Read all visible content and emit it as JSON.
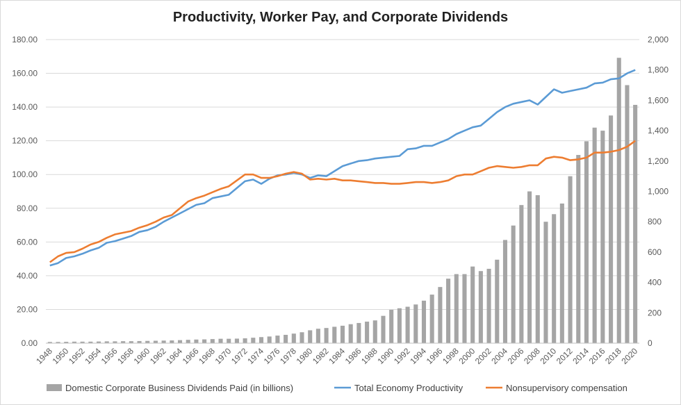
{
  "chart_data": {
    "type": "bar",
    "title": "Productivity, Worker Pay, and Corporate Dividends",
    "xlabel": "",
    "ylabel": "",
    "y2label": "",
    "ylim": [
      0,
      180
    ],
    "y2lim": [
      0,
      2000
    ],
    "y_ticks": [
      "0.00",
      "20.00",
      "40.00",
      "60.00",
      "80.00",
      "100.00",
      "120.00",
      "140.00",
      "160.00",
      "180.00"
    ],
    "y2_ticks": [
      "0",
      "200",
      "400",
      "600",
      "800",
      "1,000",
      "1,200",
      "1,400",
      "1,600",
      "1,800",
      "2,000"
    ],
    "x_labels_shown": [
      "1948",
      "1950",
      "1952",
      "1954",
      "1956",
      "1958",
      "1960",
      "1962",
      "1964",
      "1966",
      "1968",
      "1970",
      "1972",
      "1974",
      "1976",
      "1978",
      "1980",
      "1982",
      "1984",
      "1986",
      "1988",
      "1990",
      "1992",
      "1994",
      "1996",
      "1998",
      "2000",
      "2002",
      "2004",
      "2006",
      "2008",
      "2010",
      "2012",
      "2014",
      "2016",
      "2018",
      "2020"
    ],
    "x": [
      1948,
      1949,
      1950,
      1951,
      1952,
      1953,
      1954,
      1955,
      1956,
      1957,
      1958,
      1959,
      1960,
      1961,
      1962,
      1963,
      1964,
      1965,
      1966,
      1967,
      1968,
      1969,
      1970,
      1971,
      1972,
      1973,
      1974,
      1975,
      1976,
      1977,
      1978,
      1979,
      1980,
      1981,
      1982,
      1983,
      1984,
      1985,
      1986,
      1987,
      1988,
      1989,
      1990,
      1991,
      1992,
      1993,
      1994,
      1995,
      1996,
      1997,
      1998,
      1999,
      2000,
      2001,
      2002,
      2003,
      2004,
      2005,
      2006,
      2007,
      2008,
      2009,
      2010,
      2011,
      2012,
      2013,
      2014,
      2015,
      2016,
      2017,
      2018,
      2019,
      2020
    ],
    "bars": {
      "name": "Domestic Corporate Business Dividends Paid (in billions)",
      "axis": "right",
      "color": "#a5a5a5",
      "values": [
        8,
        8,
        9,
        10,
        10,
        10,
        11,
        12,
        12,
        13,
        13,
        14,
        15,
        16,
        17,
        18,
        20,
        22,
        24,
        25,
        27,
        29,
        29,
        30,
        32,
        36,
        40,
        44,
        50,
        55,
        63,
        72,
        85,
        95,
        100,
        108,
        115,
        125,
        133,
        142,
        150,
        180,
        220,
        230,
        240,
        255,
        280,
        320,
        370,
        425,
        455,
        455,
        505,
        475,
        490,
        550,
        680,
        775,
        910,
        1000,
        975,
        800,
        850,
        920,
        1100,
        1240,
        1330,
        1420,
        1400,
        1500,
        1880,
        1700,
        1570
      ]
    },
    "series": [
      {
        "name": "Total Economy Productivity",
        "axis": "left",
        "color": "#5b9bd5",
        "values": [
          46.0,
          47.5,
          50.5,
          51.5,
          53.0,
          55.0,
          56.5,
          59.5,
          60.5,
          62.0,
          63.5,
          66.0,
          67.0,
          69.0,
          72.0,
          74.5,
          77.0,
          79.5,
          82.0,
          83.0,
          86.0,
          87.0,
          88.0,
          92.0,
          96.0,
          97.0,
          94.5,
          97.5,
          99.5,
          100.0,
          101.0,
          100.0,
          98.0,
          99.5,
          99.0,
          102.0,
          105.0,
          106.5,
          108.0,
          108.5,
          109.5,
          110.0,
          110.5,
          111.0,
          115.0,
          115.5,
          117.0,
          117.0,
          119.0,
          121.0,
          124.0,
          126.0,
          128.0,
          129.0,
          133.0,
          137.0,
          140.0,
          142.0,
          143.0,
          144.0,
          141.5,
          146.0,
          150.5,
          148.5,
          149.5,
          150.5,
          151.5,
          154.0,
          154.5,
          156.5,
          157.0,
          160.0,
          162.0
        ]
      },
      {
        "name": "Nonsupervisory compensation",
        "axis": "left",
        "color": "#ed7d31",
        "values": [
          48.0,
          51.5,
          53.5,
          54.0,
          56.0,
          58.5,
          60.0,
          62.5,
          64.5,
          65.5,
          66.5,
          68.5,
          70.0,
          72.0,
          74.5,
          76.0,
          80.0,
          84.0,
          86.0,
          87.5,
          89.5,
          91.5,
          93.0,
          96.5,
          100.0,
          100.0,
          98.0,
          98.0,
          99.0,
          100.5,
          101.5,
          100.5,
          97.0,
          97.5,
          97.0,
          97.5,
          96.5,
          96.5,
          96.0,
          95.5,
          95.0,
          95.0,
          94.5,
          94.5,
          95.0,
          95.5,
          95.5,
          95.0,
          95.5,
          96.5,
          99.0,
          100.0,
          100.0,
          102.0,
          104.0,
          105.0,
          104.5,
          104.0,
          104.5,
          105.5,
          105.5,
          109.5,
          110.5,
          110.0,
          108.5,
          109.0,
          110.0,
          113.0,
          113.0,
          113.5,
          114.5,
          116.5,
          120.0
        ]
      }
    ],
    "legend": "bottom",
    "grid": true
  }
}
